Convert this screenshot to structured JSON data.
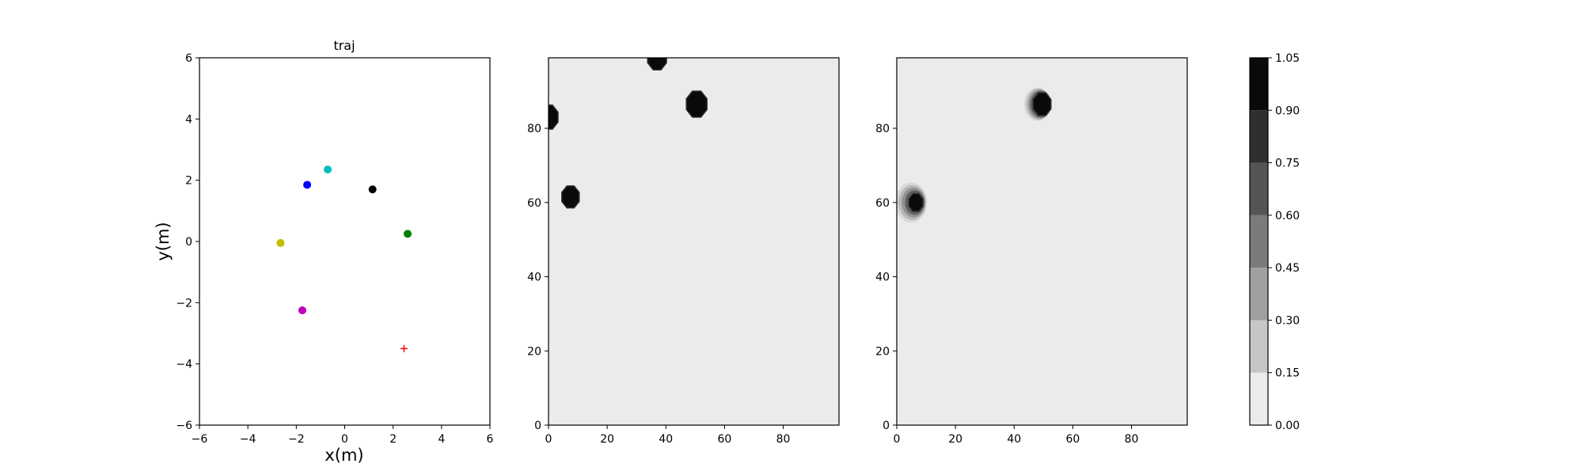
{
  "chart_data": [
    {
      "type": "scatter",
      "title": "traj",
      "xlabel": "x(m)",
      "ylabel": "y(m)",
      "xlim": [
        -6,
        6
      ],
      "ylim": [
        -6,
        6
      ],
      "xticks": [
        -6,
        -4,
        -2,
        0,
        2,
        4,
        6
      ],
      "yticks": [
        -6,
        -4,
        -2,
        0,
        2,
        4,
        6
      ],
      "grid": false,
      "points": [
        {
          "x": -1.55,
          "y": 1.85,
          "color": "#0000ff",
          "marker": "circle"
        },
        {
          "x": -0.7,
          "y": 2.35,
          "color": "#00bfbf",
          "marker": "circle"
        },
        {
          "x": 1.15,
          "y": 1.7,
          "color": "#000000",
          "marker": "circle"
        },
        {
          "x": 2.6,
          "y": 0.25,
          "color": "#008000",
          "marker": "circle"
        },
        {
          "x": -2.65,
          "y": -0.05,
          "color": "#bfbf00",
          "marker": "circle"
        },
        {
          "x": -1.75,
          "y": -2.25,
          "color": "#bf00bf",
          "marker": "circle"
        },
        {
          "x": 2.45,
          "y": -3.5,
          "color": "#ff0000",
          "marker": "plus"
        }
      ]
    },
    {
      "type": "heatmap",
      "xlim": [
        0,
        99
      ],
      "ylim": [
        0,
        99
      ],
      "xticks": [
        0,
        20,
        40,
        60,
        80
      ],
      "yticks": [
        0,
        20,
        40,
        60,
        80
      ],
      "background_value": 0.05,
      "blobs": [
        {
          "cx": 0,
          "cy": 83,
          "r": 3.5,
          "value": 1.0,
          "halo": 0
        },
        {
          "cx": 37,
          "cy": 99,
          "r": 3.5,
          "value": 1.0,
          "halo": 0
        },
        {
          "cx": 50.5,
          "cy": 86.5,
          "r": 3.8,
          "value": 1.0,
          "halo": 0
        },
        {
          "cx": 7.5,
          "cy": 61.5,
          "r": 3.2,
          "value": 1.0,
          "halo": 0
        }
      ]
    },
    {
      "type": "heatmap",
      "xlim": [
        0,
        99
      ],
      "ylim": [
        0,
        99
      ],
      "xticks": [
        0,
        20,
        40,
        60,
        80
      ],
      "yticks": [
        0,
        20,
        40,
        60,
        80
      ],
      "background_value": 0.05,
      "blobs": [
        {
          "cx": 49.5,
          "cy": 86.5,
          "r": 3.3,
          "value": 1.0,
          "halo": 1.2
        },
        {
          "cx": 6.5,
          "cy": 60,
          "r": 2.6,
          "value": 1.0,
          "halo": 2.8
        }
      ]
    }
  ],
  "colorbar": {
    "levels": [
      0.0,
      0.15,
      0.3,
      0.45,
      0.6,
      0.75,
      0.9,
      1.05
    ],
    "tick_labels": [
      "0.00",
      "0.15",
      "0.30",
      "0.45",
      "0.60",
      "0.75",
      "0.90",
      "1.05"
    ],
    "colors": [
      "#ebebeb",
      "#c6c6c6",
      "#a0a0a0",
      "#7b7b7b",
      "#555555",
      "#2f2f2f",
      "#0a0a0a"
    ]
  }
}
